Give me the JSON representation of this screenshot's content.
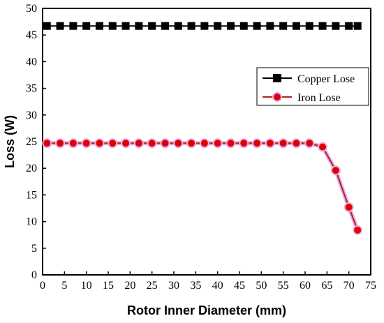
{
  "chart_data": {
    "type": "line",
    "xlabel": "Rotor Inner Diameter (mm)",
    "ylabel": "Loss (W)",
    "xlim": [
      0,
      75
    ],
    "ylim": [
      0,
      50
    ],
    "xticks": [
      "0",
      "5",
      "10",
      "15",
      "20",
      "25",
      "30",
      "35",
      "40",
      "45",
      "50",
      "55",
      "60",
      "65",
      "70",
      "75"
    ],
    "yticks": [
      "0",
      "5",
      "10",
      "15",
      "20",
      "25",
      "30",
      "35",
      "40",
      "45",
      "50"
    ],
    "grid": false,
    "legend_position": "upper-right",
    "series": [
      {
        "name": "Copper Lose",
        "color": "#000000",
        "marker": "square",
        "x": [
          1,
          4,
          7,
          10,
          13,
          16,
          19,
          22,
          25,
          28,
          31,
          34,
          37,
          40,
          43,
          46,
          49,
          52,
          55,
          58,
          61,
          64,
          67,
          70,
          72
        ],
        "y": [
          46.7,
          46.7,
          46.7,
          46.7,
          46.7,
          46.7,
          46.7,
          46.7,
          46.7,
          46.7,
          46.7,
          46.7,
          46.7,
          46.7,
          46.7,
          46.7,
          46.7,
          46.7,
          46.7,
          46.7,
          46.7,
          46.7,
          46.7,
          46.7,
          46.7
        ]
      },
      {
        "name": "Iron Lose",
        "color": "#b22222",
        "marker": "circle",
        "x": [
          1,
          4,
          7,
          10,
          13,
          16,
          19,
          22,
          25,
          28,
          31,
          34,
          37,
          40,
          43,
          46,
          49,
          52,
          55,
          58,
          61,
          64,
          67,
          70,
          72
        ],
        "y": [
          24.7,
          24.7,
          24.7,
          24.7,
          24.7,
          24.7,
          24.7,
          24.7,
          24.7,
          24.7,
          24.7,
          24.7,
          24.7,
          24.7,
          24.7,
          24.7,
          24.7,
          24.7,
          24.7,
          24.7,
          24.7,
          24.0,
          19.6,
          12.7,
          8.4
        ]
      }
    ]
  }
}
